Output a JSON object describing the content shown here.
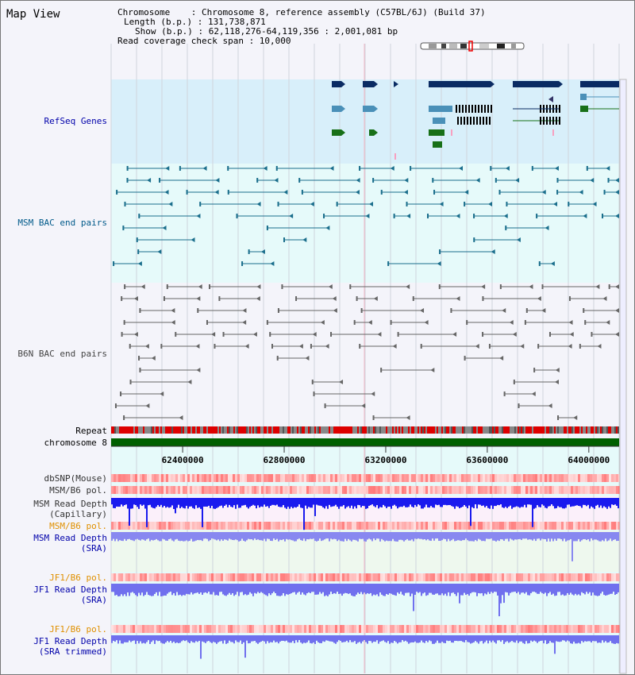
{
  "title": "Map View",
  "info": {
    "chromosome": "Chromosome    : Chromosome 8, reference assembly (C57BL/6J) (Build 37)",
    "length": "Length (b.p.) : 131,738,871",
    "show": "Show (b.p.) : 62,118,276-64,119,356 : 2,001,081 bp",
    "coverage": "Read coverage check span : 10,000"
  },
  "tracks": {
    "refseq": "RefSeq Genes",
    "msm_bac": "MSM BAC end pairs",
    "b6n_bac": "B6N BAC end pairs",
    "repeat": "Repeat",
    "chromosome": "chromosome 8",
    "dbsnp": "dbSNP(Mouse)",
    "msm_pol1": "MSM/B6 pol.",
    "msm_depth_cap_1": "MSM Read Depth",
    "msm_depth_cap_2": "(Capillary)",
    "msm_pol2": "MSM/B6 pol.",
    "msm_depth_sra_1": "MSM Read Depth",
    "msm_depth_sra_2": "(SRA)",
    "jf1_pol1": "JF1/B6 pol.",
    "jf1_depth_1": "JF1 Read Depth",
    "jf1_depth_2": "(SRA)",
    "jf1_pol2": "JF1/B6 pol.",
    "jf1_trim_1": "JF1 Read Depth",
    "jf1_trim_2": "(SRA trimmed)"
  },
  "axis": {
    "ticks": [
      "62400000",
      "62800000",
      "63200000",
      "63600000",
      "64000000"
    ],
    "tick_values": [
      62400000,
      62800000,
      63200000,
      63600000,
      64000000
    ],
    "start": 62118276,
    "end": 64119356
  },
  "colors": {
    "refseq_bg": "#d8effa",
    "bac_bg": "#e6fafa",
    "gene_dark": "#0a2b63",
    "gene_light": "#4a90b8",
    "gene_green": "#187018",
    "msm_line": "#1a6e8c",
    "b6n_line": "#666666",
    "depth_dark": "#1a1aee",
    "depth_light": "#7070ee",
    "label_blue": "#0000aa",
    "label_orange": "#e09000",
    "label_dark": "#333333"
  }
}
